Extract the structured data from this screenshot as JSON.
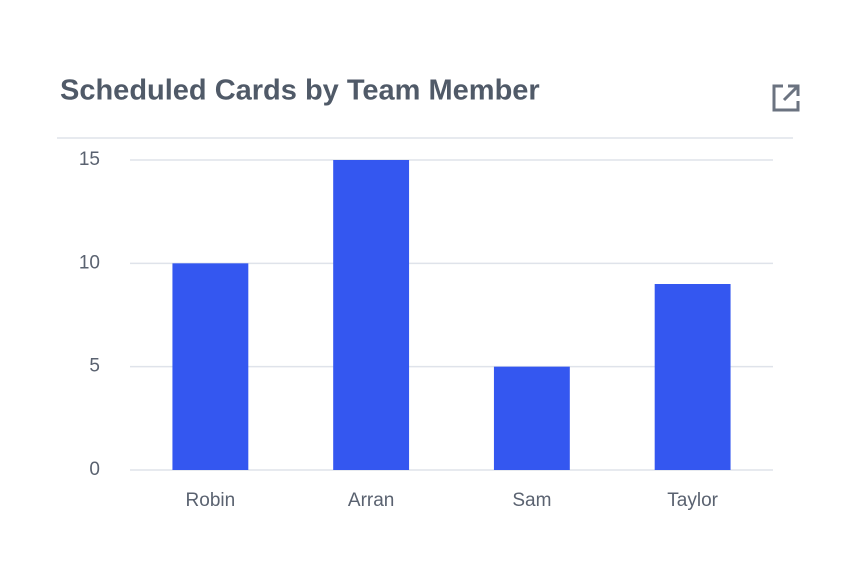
{
  "chart_data": {
    "type": "bar",
    "title": "Scheduled Cards by Team Member",
    "categories": [
      "Robin",
      "Arran",
      "Sam",
      "Taylor"
    ],
    "values": [
      10,
      15,
      5,
      9
    ],
    "color": "#3457f0",
    "ylim": [
      0,
      15
    ],
    "yticks": [
      0,
      5,
      10,
      15
    ],
    "grid": true
  }
}
